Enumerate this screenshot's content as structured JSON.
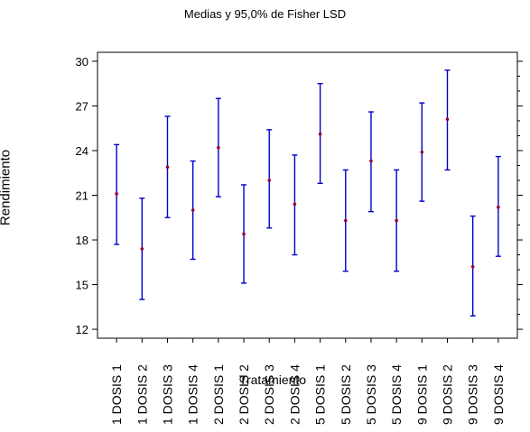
{
  "chart_data": {
    "type": "errorbar",
    "title": "Medias y 95,0% de Fisher LSD",
    "xlabel": "Tratamiento",
    "ylabel": "Rendimiento",
    "ylim": [
      11.4,
      30.6
    ],
    "yticks": [
      12,
      15,
      18,
      21,
      24,
      27,
      30
    ],
    "categories": [
      "1 DOSIS 1",
      "1 DOSIS 2",
      "1 DOSIS 3",
      "1 DOSIS 4",
      "2 DOSIS 1",
      "2 DOSIS 2",
      "2 DOSIS 3",
      "2 DOSIS 4",
      "5 DOSIS 1",
      "5 DOSIS 2",
      "5 DOSIS 3",
      "5 DOSIS 4",
      "9 DOSIS 1",
      "9 DOSIS 2",
      "9 DOSIS 3",
      "9 DOSIS 4"
    ],
    "means": [
      21.1,
      17.4,
      22.9,
      20.0,
      24.2,
      18.4,
      22.0,
      20.4,
      25.1,
      19.3,
      23.3,
      19.3,
      23.9,
      26.1,
      16.2,
      20.2
    ],
    "lower": [
      17.7,
      14.0,
      19.5,
      16.7,
      20.9,
      15.1,
      18.8,
      17.0,
      21.8,
      15.9,
      19.9,
      15.9,
      20.6,
      22.7,
      12.9,
      16.9
    ],
    "upper": [
      24.4,
      20.8,
      26.3,
      23.3,
      27.5,
      21.7,
      25.4,
      23.7,
      28.5,
      22.7,
      26.6,
      22.7,
      27.2,
      29.4,
      19.6,
      23.6
    ],
    "grid": false,
    "colors": {
      "bar": "#0000cc",
      "mean": "#990033",
      "axis": "#000000"
    }
  }
}
